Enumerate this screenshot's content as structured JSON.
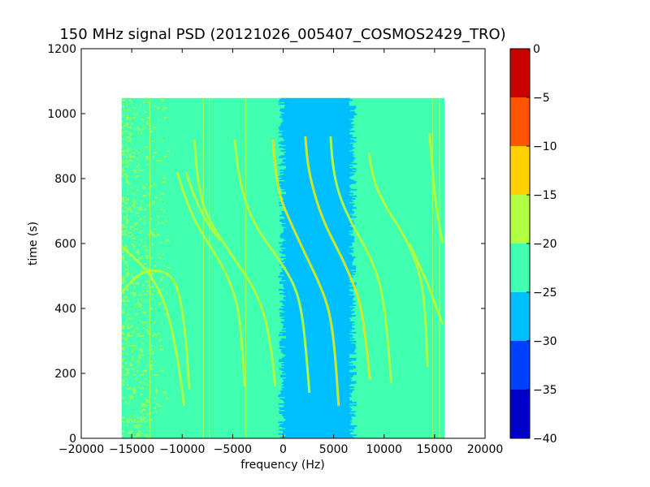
{
  "chart_data": {
    "type": "heatmap",
    "title": "150 MHz signal PSD (20121026_005407_COSMOS2429_TRO)",
    "xlabel": "frequency (Hz)",
    "ylabel": "time (s)",
    "xlim": [
      -20000,
      20000
    ],
    "ylim": [
      0,
      1200
    ],
    "xticks": [
      -20000,
      -15000,
      -10000,
      -5000,
      0,
      5000,
      10000,
      15000,
      20000
    ],
    "yticks": [
      0,
      200,
      400,
      600,
      800,
      1000,
      1200
    ],
    "xtick_labels": [
      "−20000",
      "−15000",
      "−10000",
      "−5000",
      "0",
      "5000",
      "10000",
      "15000",
      "20000"
    ],
    "ytick_labels": [
      "0",
      "200",
      "400",
      "600",
      "800",
      "1000",
      "1200"
    ],
    "grid": false,
    "data_extent": {
      "x": [
        -16000,
        16000
      ],
      "y": [
        0,
        1048
      ]
    },
    "background_level_db": -22.5,
    "noise_band": {
      "x": [
        300,
        6500
      ],
      "level_db": -27.5
    },
    "colorbar": {
      "min": -40,
      "max": 0,
      "ticks": [
        0,
        -5,
        -10,
        -15,
        -20,
        -25,
        -30,
        -35,
        -40
      ],
      "tick_labels": [
        "0",
        "−5",
        "−10",
        "−15",
        "−20",
        "−25",
        "−30",
        "−35",
        "−40"
      ],
      "levels": [
        {
          "from": -40,
          "to": -35,
          "color": "#0000c8"
        },
        {
          "from": -35,
          "to": -30,
          "color": "#0040ff"
        },
        {
          "from": -30,
          "to": -25,
          "color": "#00bfff"
        },
        {
          "from": -25,
          "to": -20,
          "color": "#40ffb0"
        },
        {
          "from": -20,
          "to": -15,
          "color": "#b0ff40"
        },
        {
          "from": -15,
          "to": -10,
          "color": "#ffd200"
        },
        {
          "from": -10,
          "to": -5,
          "color": "#ff5500"
        },
        {
          "from": -5,
          "to": 0,
          "color": "#c80000"
        }
      ]
    },
    "traces": [
      {
        "points": [
          [
            -16000,
            590
          ],
          [
            -14500,
            550
          ],
          [
            -12800,
            490
          ],
          [
            -11500,
            400
          ],
          [
            -10500,
            260
          ],
          [
            -9800,
            100
          ]
        ],
        "level_db": -17
      },
      {
        "points": [
          [
            -16000,
            450
          ],
          [
            -14200,
            510
          ],
          [
            -12500,
            520
          ],
          [
            -11000,
            500
          ],
          [
            -10200,
            440
          ],
          [
            -9600,
            300
          ],
          [
            -9300,
            150
          ]
        ],
        "level_db": -17
      },
      {
        "points": [
          [
            -10500,
            820
          ],
          [
            -9700,
            740
          ],
          [
            -8600,
            660
          ],
          [
            -7200,
            590
          ],
          [
            -6000,
            530
          ],
          [
            -5000,
            460
          ],
          [
            -4300,
            380
          ],
          [
            -3800,
            160
          ]
        ],
        "level_db": -17
      },
      {
        "points": [
          [
            -9600,
            820
          ],
          [
            -9000,
            760
          ],
          [
            -8000,
            690
          ],
          [
            -7000,
            640
          ],
          [
            -6200,
            610
          ]
        ],
        "level_db": -17
      },
      {
        "points": [
          [
            -8800,
            920
          ],
          [
            -8500,
            800
          ],
          [
            -7800,
            700
          ],
          [
            -6500,
            630
          ],
          [
            -5000,
            560
          ],
          [
            -3000,
            470
          ],
          [
            -1800,
            380
          ],
          [
            -1100,
            260
          ],
          [
            -800,
            160
          ]
        ],
        "level_db": -17
      },
      {
        "points": [
          [
            -4800,
            920
          ],
          [
            -4500,
            830
          ],
          [
            -3800,
            730
          ],
          [
            -2500,
            640
          ],
          [
            -600,
            560
          ],
          [
            1200,
            470
          ],
          [
            1900,
            380
          ],
          [
            2300,
            260
          ],
          [
            2600,
            140
          ]
        ],
        "level_db": -17
      },
      {
        "points": [
          [
            -1000,
            920
          ],
          [
            -800,
            830
          ],
          [
            -300,
            740
          ],
          [
            800,
            660
          ],
          [
            2300,
            560
          ],
          [
            3700,
            470
          ],
          [
            4600,
            390
          ],
          [
            5100,
            280
          ],
          [
            5500,
            100
          ]
        ],
        "level_db": -12
      },
      {
        "points": [
          [
            2200,
            930
          ],
          [
            2400,
            850
          ],
          [
            3000,
            760
          ],
          [
            4100,
            660
          ],
          [
            5600,
            570
          ],
          [
            6800,
            490
          ],
          [
            7700,
            410
          ],
          [
            8200,
            300
          ],
          [
            8600,
            180
          ]
        ],
        "level_db": -12
      },
      {
        "points": [
          [
            4700,
            930
          ],
          [
            4900,
            840
          ],
          [
            5500,
            750
          ],
          [
            6800,
            660
          ],
          [
            8300,
            580
          ],
          [
            9400,
            500
          ],
          [
            10000,
            410
          ],
          [
            10400,
            290
          ],
          [
            10700,
            170
          ]
        ],
        "level_db": -17
      },
      {
        "points": [
          [
            8500,
            880
          ],
          [
            8900,
            800
          ],
          [
            10000,
            720
          ],
          [
            11700,
            640
          ],
          [
            13000,
            560
          ],
          [
            13800,
            470
          ],
          [
            14100,
            370
          ],
          [
            14300,
            220
          ]
        ],
        "level_db": -17
      },
      {
        "points": [
          [
            12500,
            600
          ],
          [
            14000,
            500
          ],
          [
            15000,
            420
          ],
          [
            15800,
            350
          ]
        ],
        "level_db": -17
      },
      {
        "points": [
          [
            14500,
            940
          ],
          [
            14800,
            820
          ],
          [
            15200,
            700
          ],
          [
            15800,
            600
          ]
        ],
        "level_db": -17
      }
    ],
    "vertical_lines": [
      {
        "x": -13200,
        "level_db": -17
      },
      {
        "x": -7900,
        "level_db": -17
      },
      {
        "x": -7300,
        "level_db": -17
      },
      {
        "x": -3700,
        "level_db": -17
      },
      {
        "x": 14800,
        "level_db": -17
      },
      {
        "x": 15500,
        "level_db": -17
      }
    ],
    "noise_regions": [
      {
        "x": [
          -16000,
          -11500
        ],
        "y": [
          0,
          1048
        ],
        "level_db": -17
      }
    ]
  }
}
